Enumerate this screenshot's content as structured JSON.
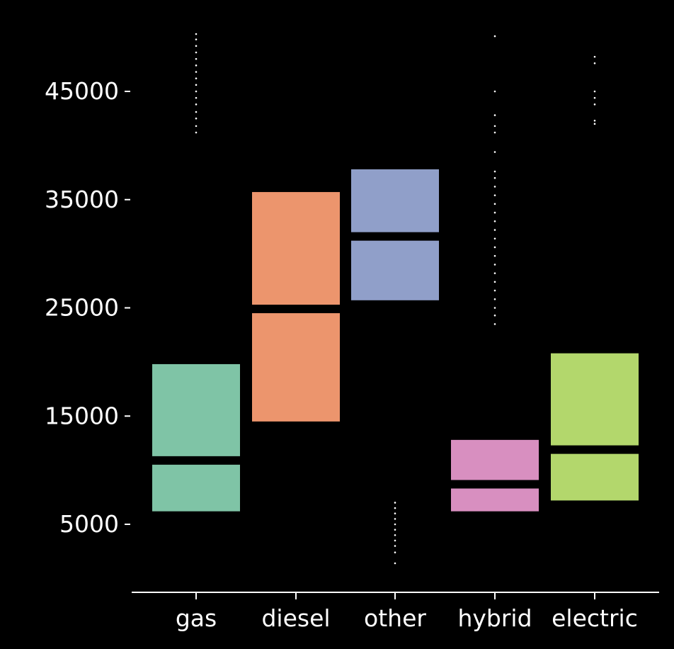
{
  "chart_data": {
    "type": "boxplot",
    "title": "",
    "xlabel": "",
    "ylabel": "",
    "grid": false,
    "legend": "none",
    "categories": [
      "gas",
      "diesel",
      "other",
      "hybrid",
      "electric"
    ],
    "yticks": [
      5000,
      15000,
      25000,
      35000,
      45000
    ],
    "ytick_labels": [
      "5000",
      "15000",
      "25000",
      "35000",
      "45000"
    ],
    "ylim": [
      -1500,
      51500
    ],
    "colors": [
      "#7fc4a6",
      "#ec956d",
      "#909fc9",
      "#d88fc0",
      "#b3d76c"
    ],
    "boxes": [
      {
        "category": "gas",
        "q1": 6200,
        "median": 10900,
        "q3": 19800
      },
      {
        "category": "diesel",
        "q1": 14500,
        "median": 24900,
        "q3": 35700
      },
      {
        "category": "other",
        "q1": 25700,
        "median": 31600,
        "q3": 37800
      },
      {
        "category": "hybrid",
        "q1": 6200,
        "median": 8700,
        "q3": 12800
      },
      {
        "category": "electric",
        "q1": 7200,
        "median": 11900,
        "q3": 20800
      }
    ],
    "outliers": [
      {
        "category": "gas",
        "values": [
          41200,
          41800,
          42500,
          43100,
          43800,
          44400,
          45000,
          45600,
          46200,
          46800,
          47400,
          48000,
          48600,
          49200,
          49800,
          50300
        ]
      },
      {
        "category": "other",
        "values": [
          1400,
          2400,
          3000,
          3500,
          4000,
          4500,
          5000,
          5500,
          6000,
          6500,
          7000
        ]
      },
      {
        "category": "hybrid",
        "values": [
          23500,
          24300,
          25000,
          25800,
          26600,
          27400,
          28200,
          29000,
          29800,
          30600,
          31400,
          32200,
          33000,
          33800,
          34600,
          35400,
          36200,
          37000,
          37600,
          39400,
          41200,
          41800,
          42800,
          45000,
          50100
        ]
      },
      {
        "category": "electric",
        "values": [
          42000,
          42300,
          43800,
          44400,
          45000,
          47600,
          48200
        ]
      }
    ]
  }
}
